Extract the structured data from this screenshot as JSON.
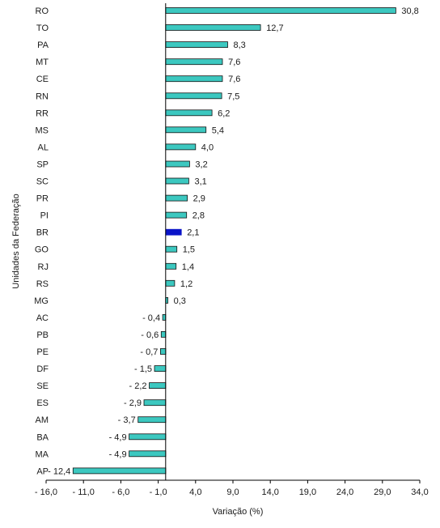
{
  "chart_data": {
    "type": "bar",
    "orientation": "horizontal",
    "title": "",
    "xlabel": "Variação (%)",
    "ylabel": "Unidades da Federação",
    "xlim": [
      -16,
      34
    ],
    "xticks": [
      -16,
      -11,
      -6,
      -1,
      4,
      9,
      14,
      19,
      24,
      29,
      34
    ],
    "xtick_labels": [
      "- 16,0",
      "- 11,0",
      "- 6,0",
      "- 1,0",
      "4,0",
      "9,0",
      "14,0",
      "19,0",
      "24,0",
      "29,0",
      "34,0"
    ],
    "grid": false,
    "legend": "none",
    "categories": [
      "RO",
      "TO",
      "PA",
      "MT",
      "CE",
      "RN",
      "RR",
      "MS",
      "AL",
      "SP",
      "SC",
      "PR",
      "PI",
      "BR",
      "GO",
      "RJ",
      "RS",
      "MG",
      "AC",
      "PB",
      "PE",
      "DF",
      "SE",
      "ES",
      "AM",
      "BA",
      "MA",
      "AP"
    ],
    "values": [
      30.8,
      12.7,
      8.3,
      7.6,
      7.6,
      7.5,
      6.2,
      5.4,
      4.0,
      3.2,
      3.1,
      2.9,
      2.8,
      2.1,
      1.5,
      1.4,
      1.2,
      0.3,
      -0.4,
      -0.6,
      -0.7,
      -1.5,
      -2.2,
      -2.9,
      -3.7,
      -4.9,
      -4.9,
      -12.4
    ],
    "value_labels": [
      "30,8",
      "12,7",
      "8,3",
      "7,6",
      "7,6",
      "7,5",
      "6,2",
      "5,4",
      "4,0",
      "3,2",
      "3,1",
      "2,9",
      "2,8",
      "2,1",
      "1,5",
      "1,4",
      "1,2",
      "0,3",
      "- 0,4",
      "- 0,6",
      "- 0,7",
      "- 1,5",
      "- 2,2",
      "- 2,9",
      "- 3,7",
      "- 4,9",
      "- 4,9",
      "- 12,4"
    ],
    "highlight_category": "BR",
    "colors": {
      "bar": "#3cc8c0",
      "highlight": "#0a14c8",
      "stroke": "#111111",
      "axis": "#000000"
    }
  }
}
